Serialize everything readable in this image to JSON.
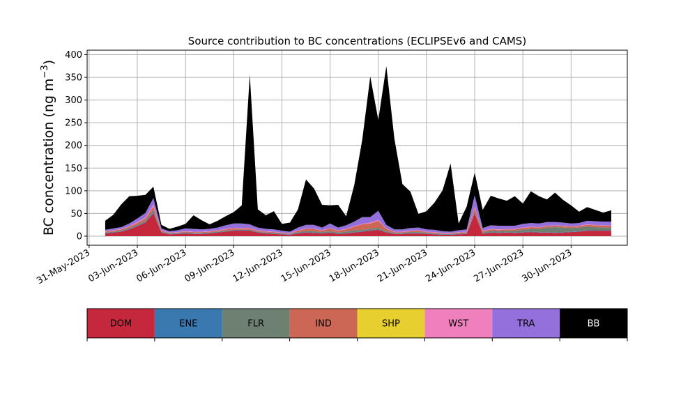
{
  "chart_data": {
    "type": "area",
    "title": "Source contribution to BC concentrations (ECLIPSEv6 and CAMS)",
    "ylabel": "BC concentration",
    "ylabel_unit": "(ng m",
    "ylabel_unit_exp": "−3",
    "ylabel_unit_close": ")",
    "ylim": [
      -20,
      410
    ],
    "yticks": [
      0,
      50,
      100,
      150,
      200,
      250,
      300,
      350,
      400
    ],
    "xlim": [
      "2023-05-30T21:00",
      "2023-07-03T12:00"
    ],
    "xticks": [
      "31-May-2023",
      "03-Jun-2023",
      "06-Jun-2023",
      "09-Jun-2023",
      "12-Jun-2023",
      "15-Jun-2023",
      "18-Jun-2023",
      "21-Jun-2023",
      "24-Jun-2023",
      "27-Jun-2023",
      "30-Jun-2023"
    ],
    "grid": true,
    "stacked": true,
    "series_order": [
      "DOM",
      "ENE",
      "FLR",
      "IND",
      "SHP",
      "WST",
      "TRA",
      "BB"
    ],
    "colors": {
      "DOM": "#c5283d",
      "ENE": "#3a78b0",
      "FLR": "#6e8071",
      "IND": "#cc6655",
      "SHP": "#e6cf2f",
      "WST": "#f07fbd",
      "TRA": "#9370db",
      "BB": "#000000"
    },
    "x": [
      "2023-06-01",
      "2023-06-01T12:00",
      "2023-06-02",
      "2023-06-02T12:00",
      "2023-06-03",
      "2023-06-03T12:00",
      "2023-06-04",
      "2023-06-04T12:00",
      "2023-06-05",
      "2023-06-05T12:00",
      "2023-06-06",
      "2023-06-06T12:00",
      "2023-06-07",
      "2023-06-07T12:00",
      "2023-06-08",
      "2023-06-08T12:00",
      "2023-06-09",
      "2023-06-09T12:00",
      "2023-06-10",
      "2023-06-10T12:00",
      "2023-06-11",
      "2023-06-11T12:00",
      "2023-06-12",
      "2023-06-12T12:00",
      "2023-06-13",
      "2023-06-13T12:00",
      "2023-06-14",
      "2023-06-14T12:00",
      "2023-06-15",
      "2023-06-15T12:00",
      "2023-06-16",
      "2023-06-16T12:00",
      "2023-06-17",
      "2023-06-17T12:00",
      "2023-06-18",
      "2023-06-18T12:00",
      "2023-06-19",
      "2023-06-19T12:00",
      "2023-06-20",
      "2023-06-20T12:00",
      "2023-06-21",
      "2023-06-21T12:00",
      "2023-06-22",
      "2023-06-22T12:00",
      "2023-06-23",
      "2023-06-23T12:00",
      "2023-06-24",
      "2023-06-24T12:00",
      "2023-06-25",
      "2023-06-25T12:00",
      "2023-06-26",
      "2023-06-26T12:00",
      "2023-06-27",
      "2023-06-27T12:00",
      "2023-06-28",
      "2023-06-28T12:00",
      "2023-06-29",
      "2023-06-29T12:00",
      "2023-06-30",
      "2023-06-30T12:00",
      "2023-07-01",
      "2023-07-01T12:00",
      "2023-07-02",
      "2023-07-02T12:00"
    ],
    "series": [
      {
        "name": "DOM",
        "values": [
          6,
          8,
          10,
          15,
          22,
          30,
          50,
          8,
          4,
          5,
          6,
          5,
          5,
          6,
          8,
          10,
          12,
          12,
          12,
          8,
          6,
          5,
          4,
          3,
          6,
          8,
          7,
          6,
          8,
          5,
          6,
          8,
          10,
          12,
          14,
          8,
          5,
          5,
          6,
          6,
          5,
          4,
          3,
          3,
          4,
          5,
          50,
          5,
          8,
          7,
          8,
          7,
          8,
          9,
          8,
          8,
          7,
          8,
          9,
          10,
          12,
          12,
          12,
          12
        ]
      },
      {
        "name": "ENE",
        "values": [
          1,
          1,
          1,
          1,
          1,
          1,
          2,
          1,
          1,
          1,
          1,
          1,
          1,
          1,
          1,
          1,
          1,
          1,
          1,
          1,
          1,
          1,
          1,
          1,
          1,
          1,
          1,
          1,
          1,
          1,
          1,
          1,
          1,
          1,
          1,
          1,
          1,
          1,
          1,
          1,
          1,
          1,
          1,
          1,
          1,
          1,
          2,
          1,
          1,
          1,
          1,
          1,
          1,
          1,
          1,
          1,
          1,
          1,
          1,
          1,
          1,
          1,
          1,
          1
        ]
      },
      {
        "name": "FLR",
        "values": [
          1,
          1,
          1,
          2,
          2,
          3,
          5,
          1,
          1,
          1,
          1,
          1,
          1,
          1,
          1,
          1,
          1,
          1,
          1,
          1,
          1,
          1,
          1,
          1,
          2,
          2,
          3,
          2,
          2,
          2,
          3,
          4,
          3,
          3,
          3,
          2,
          1,
          1,
          2,
          2,
          1,
          1,
          1,
          1,
          1,
          1,
          2,
          2,
          3,
          3,
          3,
          4,
          5,
          6,
          7,
          10,
          12,
          10,
          8,
          8,
          8,
          7,
          6,
          6
        ]
      },
      {
        "name": "IND",
        "values": [
          2,
          2,
          3,
          3,
          4,
          5,
          8,
          2,
          1,
          1,
          2,
          2,
          2,
          2,
          2,
          3,
          3,
          3,
          3,
          2,
          2,
          2,
          1,
          1,
          3,
          5,
          5,
          3,
          6,
          4,
          5,
          8,
          12,
          12,
          16,
          5,
          2,
          2,
          2,
          3,
          2,
          2,
          1,
          1,
          2,
          2,
          8,
          3,
          3,
          3,
          3,
          3,
          4,
          4,
          3,
          3,
          3,
          3,
          3,
          3,
          4,
          4,
          4,
          4
        ]
      },
      {
        "name": "SHP",
        "values": [
          0,
          0,
          0,
          0,
          0,
          0,
          0,
          0,
          0,
          0,
          0,
          0,
          0,
          0,
          0,
          0,
          0,
          0,
          0,
          0,
          0,
          0,
          0,
          0,
          0,
          0,
          0,
          0,
          0,
          0,
          0,
          0,
          0,
          0,
          0,
          0,
          0,
          0,
          0,
          0,
          0,
          0,
          0,
          0,
          0,
          0,
          0,
          0,
          0,
          0,
          0,
          0,
          0,
          0,
          0,
          0,
          0,
          0,
          0,
          0,
          0,
          0,
          0,
          0
        ]
      },
      {
        "name": "WST",
        "values": [
          1,
          1,
          1,
          1,
          2,
          2,
          4,
          1,
          1,
          1,
          1,
          1,
          1,
          1,
          1,
          1,
          1,
          1,
          1,
          1,
          1,
          1,
          1,
          1,
          1,
          1,
          1,
          1,
          1,
          1,
          1,
          1,
          1,
          2,
          2,
          1,
          1,
          1,
          1,
          1,
          1,
          1,
          1,
          1,
          1,
          1,
          3,
          1,
          1,
          1,
          1,
          1,
          1,
          1,
          1,
          1,
          1,
          1,
          1,
          1,
          1,
          1,
          1,
          1
        ]
      },
      {
        "name": "TRA",
        "values": [
          3,
          4,
          4,
          6,
          8,
          10,
          15,
          4,
          3,
          4,
          6,
          6,
          5,
          5,
          6,
          8,
          10,
          10,
          8,
          6,
          5,
          5,
          4,
          3,
          6,
          8,
          8,
          6,
          10,
          6,
          8,
          10,
          15,
          12,
          20,
          8,
          5,
          5,
          6,
          6,
          5,
          5,
          4,
          3,
          4,
          5,
          25,
          6,
          8,
          8,
          7,
          7,
          8,
          8,
          8,
          8,
          7,
          7,
          6,
          6,
          8,
          8,
          8,
          8
        ]
      },
      {
        "name": "BB",
        "values": [
          20,
          30,
          50,
          60,
          50,
          40,
          25,
          8,
          5,
          8,
          10,
          30,
          20,
          10,
          15,
          20,
          25,
          40,
          330,
          40,
          30,
          40,
          15,
          20,
          40,
          100,
          80,
          50,
          40,
          50,
          20,
          80,
          170,
          310,
          200,
          350,
          200,
          100,
          80,
          30,
          40,
          60,
          90,
          150,
          15,
          50,
          50,
          40,
          65,
          60,
          55,
          65,
          45,
          70,
          60,
          50,
          65,
          50,
          40,
          25,
          30,
          25,
          20,
          25
        ]
      }
    ]
  }
}
